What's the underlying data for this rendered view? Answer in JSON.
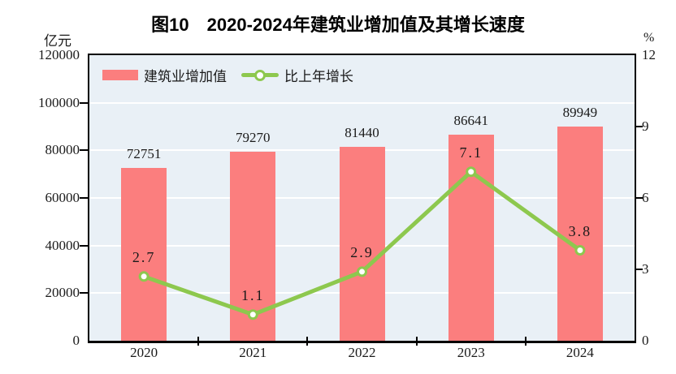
{
  "title": "图10　2020-2024年建筑业增加值及其增长速度",
  "axes": {
    "left_unit": "亿元",
    "right_unit": "%"
  },
  "legend": {
    "bar_label": "建筑业增加值",
    "line_label": "比上年增长"
  },
  "colors": {
    "bar": "#FB7E7E",
    "line": "#8DC84E",
    "marker_fill": "#FFFFFF",
    "plot_background": "#E9F0F6",
    "gridline": "#FFFFFF",
    "axis": "#000000",
    "text": "#1A1A1A"
  },
  "chart_data": {
    "type": "bar",
    "combo": "bar+line",
    "title": "图10　2020-2024年建筑业增加值及其增长速度",
    "categories": [
      "2020",
      "2021",
      "2022",
      "2023",
      "2024"
    ],
    "series": [
      {
        "name": "建筑业增加值",
        "type": "bar",
        "axis": "left",
        "unit": "亿元",
        "values": [
          72751,
          79270,
          81440,
          86641,
          89949
        ],
        "labels": [
          "72751",
          "79270",
          "81440",
          "86641",
          "89949"
        ]
      },
      {
        "name": "比上年增长",
        "type": "line",
        "axis": "right",
        "unit": "%",
        "values": [
          2.7,
          1.1,
          2.9,
          7.1,
          3.8
        ],
        "labels": [
          "2.7",
          "1.1",
          "2.9",
          "7.1",
          "3.8"
        ]
      }
    ],
    "left_axis": {
      "label": "亿元",
      "min": 0,
      "max": 120000,
      "ticks": [
        0,
        20000,
        40000,
        60000,
        80000,
        100000,
        120000
      ]
    },
    "right_axis": {
      "label": "%",
      "min": 0,
      "max": 12,
      "ticks": [
        0,
        3,
        6,
        9,
        12
      ]
    },
    "grid": true,
    "legend_position": "top-left-inside"
  }
}
